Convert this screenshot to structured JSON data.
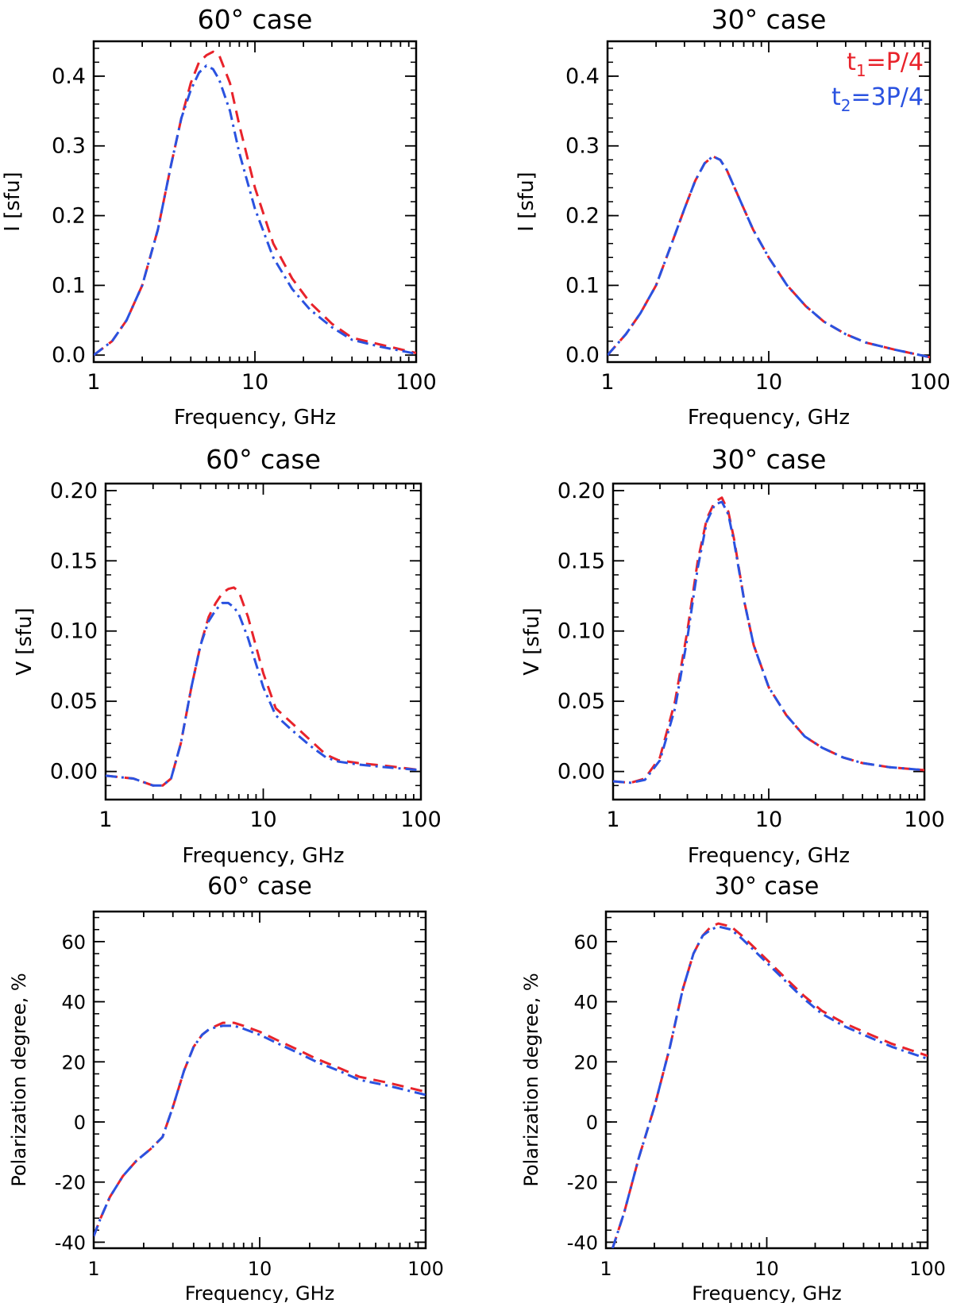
{
  "legend": {
    "entries": [
      {
        "main": "t",
        "sub": "1",
        "rest": "=P/4",
        "color": "#e8232b"
      },
      {
        "main": "t",
        "sub": "2",
        "rest": "=3P/4",
        "color": "#2a52e0"
      }
    ]
  },
  "chart_data": [
    {
      "type": "line",
      "title": "60° case",
      "xlabel": "Frequency, GHz",
      "ylabel": "I [sfu]",
      "xscale": "log",
      "xlim": [
        1,
        100
      ],
      "ylim": [
        -0.01,
        0.45
      ],
      "xticks": [
        "1",
        "10",
        "100"
      ],
      "yticks": [
        "0.0",
        "0.1",
        "0.2",
        "0.3",
        "0.4"
      ],
      "ytick_values": [
        0.0,
        0.1,
        0.2,
        0.3,
        0.4
      ],
      "series": [
        {
          "name": "t1=P/4",
          "color": "#e8232b",
          "dash": "dashed",
          "x": [
            1,
            1.3,
            1.6,
            2,
            2.5,
            3,
            3.5,
            4,
            4.5,
            5,
            5.5,
            6,
            7,
            8,
            10,
            13,
            17,
            22,
            30,
            40,
            60,
            100
          ],
          "y": [
            0.0,
            0.02,
            0.05,
            0.1,
            0.18,
            0.27,
            0.34,
            0.39,
            0.42,
            0.43,
            0.435,
            0.43,
            0.39,
            0.33,
            0.24,
            0.16,
            0.11,
            0.075,
            0.045,
            0.025,
            0.015,
            0.003
          ]
        },
        {
          "name": "t2=3P/4",
          "color": "#2a52e0",
          "dash": "dashdot",
          "x": [
            1,
            1.3,
            1.6,
            2,
            2.5,
            3,
            3.5,
            4,
            4.5,
            5,
            5.5,
            6,
            7,
            8,
            10,
            13,
            17,
            22,
            30,
            40,
            60,
            100
          ],
          "y": [
            0.0,
            0.02,
            0.05,
            0.1,
            0.18,
            0.27,
            0.34,
            0.38,
            0.405,
            0.415,
            0.41,
            0.395,
            0.35,
            0.29,
            0.21,
            0.14,
            0.095,
            0.065,
            0.04,
            0.022,
            0.012,
            0.002
          ]
        }
      ]
    },
    {
      "type": "line",
      "title": "30° case",
      "xlabel": "Frequency, GHz",
      "ylabel": "I [sfu]",
      "xscale": "log",
      "xlim": [
        1,
        100
      ],
      "ylim": [
        -0.01,
        0.45
      ],
      "xticks": [
        "1",
        "10",
        "100"
      ],
      "yticks": [
        "0.0",
        "0.1",
        "0.2",
        "0.3",
        "0.4"
      ],
      "ytick_values": [
        0.0,
        0.1,
        0.2,
        0.3,
        0.4
      ],
      "show_legend": true,
      "series": [
        {
          "name": "t1=P/4",
          "color": "#e8232b",
          "dash": "dashed",
          "x": [
            1,
            1.3,
            1.6,
            2,
            2.5,
            3,
            3.5,
            4,
            4.5,
            5,
            5.5,
            6,
            7,
            8,
            10,
            13,
            17,
            22,
            30,
            40,
            60,
            100
          ],
          "y": [
            0.0,
            0.03,
            0.06,
            0.1,
            0.16,
            0.21,
            0.25,
            0.275,
            0.285,
            0.28,
            0.265,
            0.245,
            0.21,
            0.18,
            0.14,
            0.1,
            0.07,
            0.048,
            0.03,
            0.018,
            0.008,
            -0.003
          ]
        },
        {
          "name": "t2=3P/4",
          "color": "#2a52e0",
          "dash": "dashdot",
          "x": [
            1,
            1.3,
            1.6,
            2,
            2.5,
            3,
            3.5,
            4,
            4.5,
            5,
            5.5,
            6,
            7,
            8,
            10,
            13,
            17,
            22,
            30,
            40,
            60,
            100
          ],
          "y": [
            0.0,
            0.03,
            0.06,
            0.1,
            0.16,
            0.21,
            0.25,
            0.275,
            0.285,
            0.28,
            0.265,
            0.245,
            0.21,
            0.18,
            0.14,
            0.1,
            0.07,
            0.048,
            0.03,
            0.018,
            0.008,
            -0.003
          ]
        }
      ]
    },
    {
      "type": "line",
      "title": "60° case",
      "xlabel": "Frequency, GHz",
      "ylabel": "V [sfu]",
      "xscale": "log",
      "xlim": [
        1,
        100
      ],
      "ylim": [
        -0.02,
        0.205
      ],
      "xticks": [
        "1",
        "10",
        "100"
      ],
      "yticks": [
        "0.00",
        "0.05",
        "0.10",
        "0.15",
        "0.20"
      ],
      "ytick_values": [
        0.0,
        0.05,
        0.1,
        0.15,
        0.2
      ],
      "series": [
        {
          "name": "t1=P/4",
          "color": "#e8232b",
          "dash": "dashed",
          "x": [
            1,
            1.5,
            2,
            2.3,
            2.6,
            3,
            3.5,
            4,
            4.5,
            5,
            5.5,
            6,
            6.5,
            7,
            8,
            10,
            12,
            15,
            20,
            25,
            30,
            40,
            60,
            100
          ],
          "y": [
            -0.003,
            -0.005,
            -0.01,
            -0.01,
            -0.005,
            0.02,
            0.06,
            0.09,
            0.11,
            0.12,
            0.127,
            0.13,
            0.131,
            0.128,
            0.11,
            0.07,
            0.045,
            0.035,
            0.022,
            0.012,
            0.008,
            0.006,
            0.004,
            0.001
          ]
        },
        {
          "name": "t2=3P/4",
          "color": "#2a52e0",
          "dash": "dashdot",
          "x": [
            1,
            1.5,
            2,
            2.3,
            2.6,
            3,
            3.5,
            4,
            4.5,
            5,
            5.5,
            6,
            6.5,
            7,
            8,
            10,
            12,
            15,
            20,
            25,
            30,
            40,
            60,
            100
          ],
          "y": [
            -0.003,
            -0.005,
            -0.01,
            -0.01,
            -0.005,
            0.02,
            0.06,
            0.09,
            0.107,
            0.115,
            0.12,
            0.12,
            0.117,
            0.112,
            0.095,
            0.06,
            0.04,
            0.03,
            0.018,
            0.01,
            0.007,
            0.005,
            0.003,
            0.001
          ]
        }
      ]
    },
    {
      "type": "line",
      "title": "30° case",
      "xlabel": "Frequency, GHz",
      "ylabel": "V [sfu]",
      "xscale": "log",
      "xlim": [
        1,
        100
      ],
      "ylim": [
        -0.02,
        0.205
      ],
      "xticks": [
        "1",
        "10",
        "100"
      ],
      "yticks": [
        "0.00",
        "0.05",
        "0.10",
        "0.15",
        "0.20"
      ],
      "ytick_values": [
        0.0,
        0.05,
        0.1,
        0.15,
        0.2
      ],
      "series": [
        {
          "name": "t1=P/4",
          "color": "#e8232b",
          "dash": "dashed",
          "x": [
            1,
            1.3,
            1.6,
            2,
            2.5,
            3,
            3.5,
            4,
            4.5,
            5,
            5.5,
            6,
            7,
            8,
            10,
            13,
            17,
            22,
            30,
            40,
            60,
            100
          ],
          "y": [
            -0.007,
            -0.008,
            -0.005,
            0.01,
            0.05,
            0.1,
            0.15,
            0.18,
            0.192,
            0.195,
            0.185,
            0.165,
            0.12,
            0.09,
            0.06,
            0.04,
            0.025,
            0.017,
            0.01,
            0.006,
            0.003,
            0.001
          ]
        },
        {
          "name": "t2=3P/4",
          "color": "#2a52e0",
          "dash": "dashdot",
          "x": [
            1,
            1.3,
            1.6,
            2,
            2.5,
            3,
            3.5,
            4,
            4.5,
            5,
            5.5,
            6,
            7,
            8,
            10,
            13,
            17,
            22,
            30,
            40,
            60,
            100
          ],
          "y": [
            -0.007,
            -0.008,
            -0.006,
            0.008,
            0.045,
            0.095,
            0.145,
            0.178,
            0.19,
            0.192,
            0.183,
            0.163,
            0.12,
            0.09,
            0.06,
            0.04,
            0.025,
            0.017,
            0.01,
            0.006,
            0.003,
            0.001
          ]
        }
      ]
    },
    {
      "type": "line",
      "title": "60° case",
      "xlabel": "Frequency, GHz",
      "ylabel": "Polarization degree, %",
      "xscale": "log",
      "xlim": [
        1,
        100
      ],
      "ylim": [
        -42,
        70
      ],
      "xticks": [
        "1",
        "10",
        "100"
      ],
      "yticks": [
        "-40",
        "-20",
        "0",
        "20",
        "40",
        "60"
      ],
      "ytick_values": [
        -40,
        -20,
        0,
        20,
        40,
        60
      ],
      "series": [
        {
          "name": "t1=P/4",
          "color": "#e8232b",
          "dash": "dashed",
          "x": [
            1,
            1.1,
            1.25,
            1.5,
            1.8,
            2.2,
            2.6,
            3,
            3.5,
            4,
            4.5,
            5,
            6,
            7,
            8,
            10,
            13,
            17,
            22,
            30,
            40,
            60,
            100
          ],
          "y": [
            -38,
            -32,
            -25,
            -18,
            -13,
            -9,
            -5,
            5,
            17,
            25,
            29,
            31,
            33,
            33,
            32,
            30,
            27,
            24,
            21,
            18,
            15,
            13,
            10
          ]
        },
        {
          "name": "t2=3P/4",
          "color": "#2a52e0",
          "dash": "dashdot",
          "x": [
            1,
            1.1,
            1.25,
            1.5,
            1.8,
            2.2,
            2.6,
            3,
            3.5,
            4,
            4.5,
            5,
            6,
            7,
            8,
            10,
            13,
            17,
            22,
            30,
            40,
            60,
            100
          ],
          "y": [
            -38,
            -32,
            -25,
            -18,
            -13,
            -9,
            -5,
            5,
            17,
            25,
            29,
            31,
            32,
            32,
            31,
            29,
            26,
            23,
            20,
            17,
            14,
            12,
            9
          ]
        }
      ]
    },
    {
      "type": "line",
      "title": "30° case",
      "xlabel": "Frequency, GHz",
      "ylabel": "Polarization degree, %",
      "xscale": "log",
      "xlim": [
        1,
        100
      ],
      "ylim": [
        -42,
        70
      ],
      "xticks": [
        "1",
        "10",
        "100"
      ],
      "yticks": [
        "-40",
        "-20",
        "0",
        "20",
        "40",
        "60"
      ],
      "ytick_values": [
        -40,
        -20,
        0,
        20,
        40,
        60
      ],
      "series": [
        {
          "name": "t1=P/4",
          "color": "#e8232b",
          "dash": "dashed",
          "x": [
            1.1,
            1.3,
            1.6,
            2,
            2.5,
            3,
            3.5,
            4,
            4.5,
            5,
            6,
            7,
            8,
            10,
            13,
            17,
            22,
            30,
            40,
            60,
            100
          ],
          "y": [
            -42,
            -30,
            -12,
            5,
            25,
            44,
            56,
            62,
            65,
            66,
            65,
            62,
            59,
            54,
            48,
            42,
            37,
            33,
            30,
            26,
            22
          ]
        },
        {
          "name": "t2=3P/4",
          "color": "#2a52e0",
          "dash": "dashdot",
          "x": [
            1.1,
            1.3,
            1.6,
            2,
            2.5,
            3,
            3.5,
            4,
            4.5,
            5,
            6,
            7,
            8,
            10,
            13,
            17,
            22,
            30,
            40,
            60,
            100
          ],
          "y": [
            -42,
            -30,
            -12,
            5,
            25,
            44,
            56,
            62,
            64,
            65,
            64,
            61,
            58,
            53,
            47,
            41,
            36,
            32,
            29,
            25,
            21
          ]
        }
      ]
    }
  ]
}
